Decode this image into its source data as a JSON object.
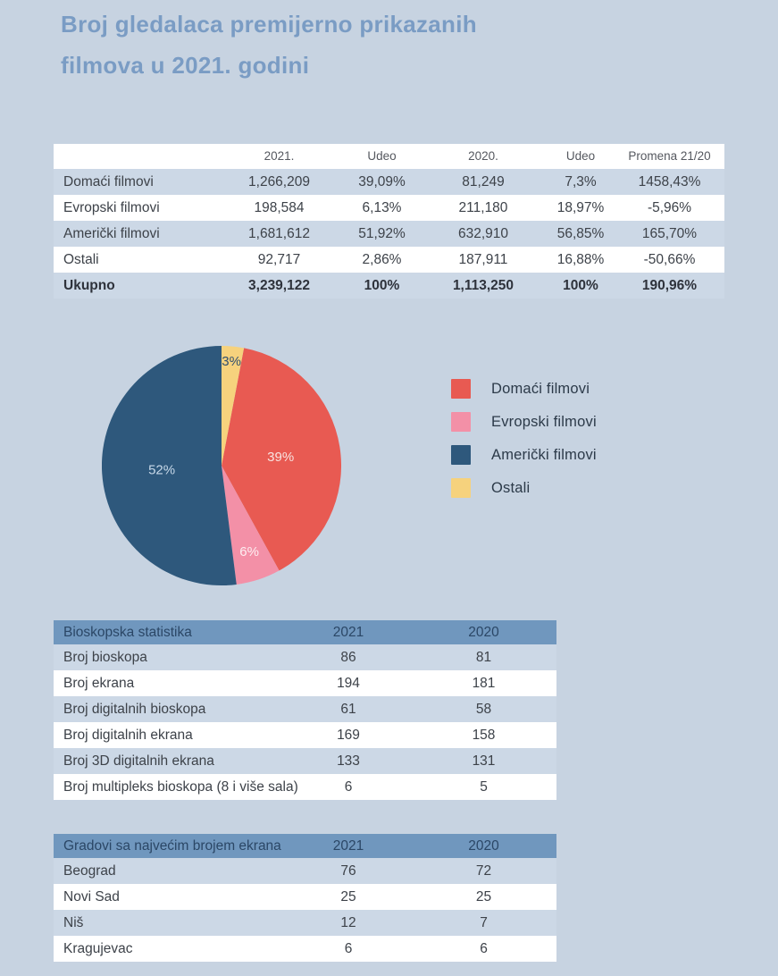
{
  "header": {
    "title_line1": "Broj gledalaca premijerno prikazanih",
    "title_line2": "filmova u 2021. godini"
  },
  "films_table": {
    "columns": [
      "",
      "2021.",
      "Udeo",
      "2020.",
      "Udeo",
      "Promena 21/20"
    ],
    "rows": [
      {
        "label": "Domaći filmovi",
        "v2021": "1,266,209",
        "udeo2021": "39,09%",
        "v2020": "81,249",
        "udeo2020": "7,3%",
        "promena": "1458,43%"
      },
      {
        "label": "Evropski filmovi",
        "v2021": "198,584",
        "udeo2021": "6,13%",
        "v2020": "211,180",
        "udeo2020": "18,97%",
        "promena": "-5,96%"
      },
      {
        "label": "Američki filmovi",
        "v2021": "1,681,612",
        "udeo2021": "51,92%",
        "v2020": "632,910",
        "udeo2020": "56,85%",
        "promena": "165,70%"
      },
      {
        "label": "Ostali",
        "v2021": "92,717",
        "udeo2021": "2,86%",
        "v2020": "187,911",
        "udeo2020": "16,88%",
        "promena": "-50,66%"
      }
    ],
    "total": {
      "label": "Ukupno",
      "v2021": "3,239,122",
      "udeo2021": "100%",
      "v2020": "1,113,250",
      "udeo2020": "100%",
      "promena": "190,96%"
    }
  },
  "chart_data": {
    "type": "pie",
    "title": "",
    "legend_position": "right",
    "start_angle_deg": 10.8,
    "slices": [
      {
        "label": "Domaći filmovi",
        "value": 39,
        "display": "39%",
        "color": "#e85a52",
        "text_color": "#f8e3e0"
      },
      {
        "label": "Evropski filmovi",
        "value": 6,
        "display": "6%",
        "color": "#f390a7",
        "text_color": "#fdeef2"
      },
      {
        "label": "Američki filmovi",
        "value": 52,
        "display": "52%",
        "color": "#2e587c",
        "text_color": "#c8d9e9"
      },
      {
        "label": "Ostali",
        "value": 3,
        "display": "3%",
        "color": "#f6d27d",
        "text_color": "#31506f"
      }
    ]
  },
  "cinema_table": {
    "header": [
      "Bioskopska statistika",
      "2021",
      "2020"
    ],
    "rows": [
      [
        "Broj bioskopa",
        "86",
        "81"
      ],
      [
        "Broj ekrana",
        "194",
        "181"
      ],
      [
        "Broj digitalnih bioskopa",
        "61",
        "58"
      ],
      [
        "Broj digitalnih ekrana",
        "169",
        "158"
      ],
      [
        "Broj 3D digitalnih ekrana",
        "133",
        "131"
      ],
      [
        "Broj multipleks bioskopa (8 i više sala)",
        "6",
        "5"
      ]
    ]
  },
  "cities_table": {
    "header": [
      "Gradovi sa najvećim brojem ekrana",
      "2021",
      "2020"
    ],
    "rows": [
      [
        "Beograd",
        "76",
        "72"
      ],
      [
        "Novi Sad",
        "25",
        "25"
      ],
      [
        "Niš",
        "12",
        "7"
      ],
      [
        "Kragujevac",
        "6",
        "6"
      ]
    ]
  },
  "colors": {
    "page_bg": "#c7d3e1",
    "row_alt": "#ccd8e6",
    "table_header_bg": "#7097be",
    "title_text": "#7a9cc4"
  }
}
